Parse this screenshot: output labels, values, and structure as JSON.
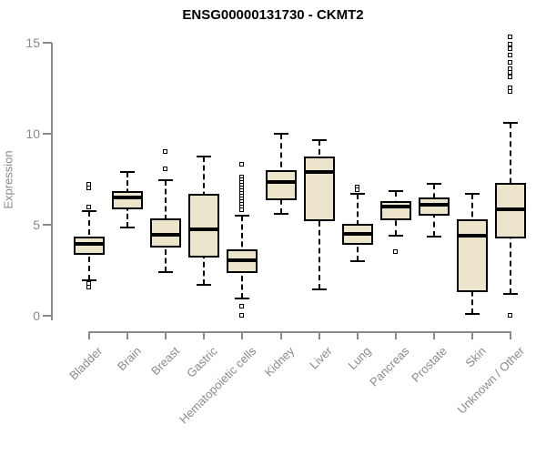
{
  "page": {
    "title": "ENSG00000131730 - CKMT2"
  },
  "chart_data": {
    "type": "boxplot",
    "title": "ENSG00000131730 - CKMT2",
    "ylabel": "Expression",
    "xlabel": "",
    "ylim": [
      0,
      15.5
    ],
    "yticks": [
      0,
      5,
      10,
      15
    ],
    "grid": false,
    "legend": "none",
    "categories": [
      "Bladder",
      "Brain",
      "Breast",
      "Gastric",
      "Hematopoietic cells",
      "Kidney",
      "Liver",
      "Lung",
      "Pancreas",
      "Prostate",
      "Skin",
      "Unknown / Other"
    ],
    "series": [
      {
        "name": "Bladder",
        "low": 1.95,
        "q1": 3.35,
        "median": 3.95,
        "q3": 4.35,
        "high": 5.75,
        "outliers": [
          7.2,
          7.0,
          5.95,
          1.75,
          1.55
        ]
      },
      {
        "name": "Brain",
        "low": 4.85,
        "q1": 5.85,
        "median": 6.5,
        "q3": 6.85,
        "high": 7.9,
        "outliers": []
      },
      {
        "name": "Breast",
        "low": 2.4,
        "q1": 3.75,
        "median": 4.45,
        "q3": 5.35,
        "high": 7.45,
        "outliers": [
          9.0,
          8.05
        ]
      },
      {
        "name": "Gastric",
        "low": 1.7,
        "q1": 3.2,
        "median": 4.75,
        "q3": 6.7,
        "high": 8.75,
        "outliers": []
      },
      {
        "name": "Hematopoietic cells",
        "low": 0.95,
        "q1": 2.35,
        "median": 3.05,
        "q3": 3.65,
        "high": 5.5,
        "outliers": [
          8.3,
          7.6,
          7.45,
          7.3,
          7.15,
          7.0,
          6.85,
          6.7,
          6.55,
          6.4,
          6.25,
          6.1,
          5.95,
          5.8,
          0.5,
          0.0
        ]
      },
      {
        "name": "Kidney",
        "low": 5.6,
        "q1": 6.35,
        "median": 7.35,
        "q3": 8.0,
        "high": 10.0,
        "outliers": []
      },
      {
        "name": "Liver",
        "low": 1.45,
        "q1": 5.2,
        "median": 7.9,
        "q3": 8.75,
        "high": 9.65,
        "outliers": []
      },
      {
        "name": "Lung",
        "low": 3.0,
        "q1": 3.9,
        "median": 4.5,
        "q3": 5.05,
        "high": 6.7,
        "outliers": [
          7.05,
          6.9
        ]
      },
      {
        "name": "Pancreas",
        "low": 4.4,
        "q1": 5.25,
        "median": 6.0,
        "q3": 6.3,
        "high": 6.85,
        "outliers": [
          3.5
        ]
      },
      {
        "name": "Prostate",
        "low": 4.35,
        "q1": 5.5,
        "median": 6.1,
        "q3": 6.5,
        "high": 7.25,
        "outliers": []
      },
      {
        "name": "Skin",
        "low": 0.1,
        "q1": 1.3,
        "median": 4.4,
        "q3": 5.3,
        "high": 6.7,
        "outliers": []
      },
      {
        "name": "Unknown / Other",
        "low": 1.2,
        "q1": 4.25,
        "median": 5.85,
        "q3": 7.3,
        "high": 10.6,
        "outliers": [
          15.3,
          14.9,
          14.65,
          14.3,
          13.9,
          13.55,
          13.35,
          13.1,
          12.5,
          12.3,
          0.0
        ]
      }
    ],
    "colors": {
      "box_fill": "#ece5cb",
      "box_border": "#000000",
      "median": "#000000",
      "axis": "#8a8a8a",
      "tick_label": "#8a8a8a",
      "title": "#000000",
      "background": "#ffffff"
    }
  }
}
